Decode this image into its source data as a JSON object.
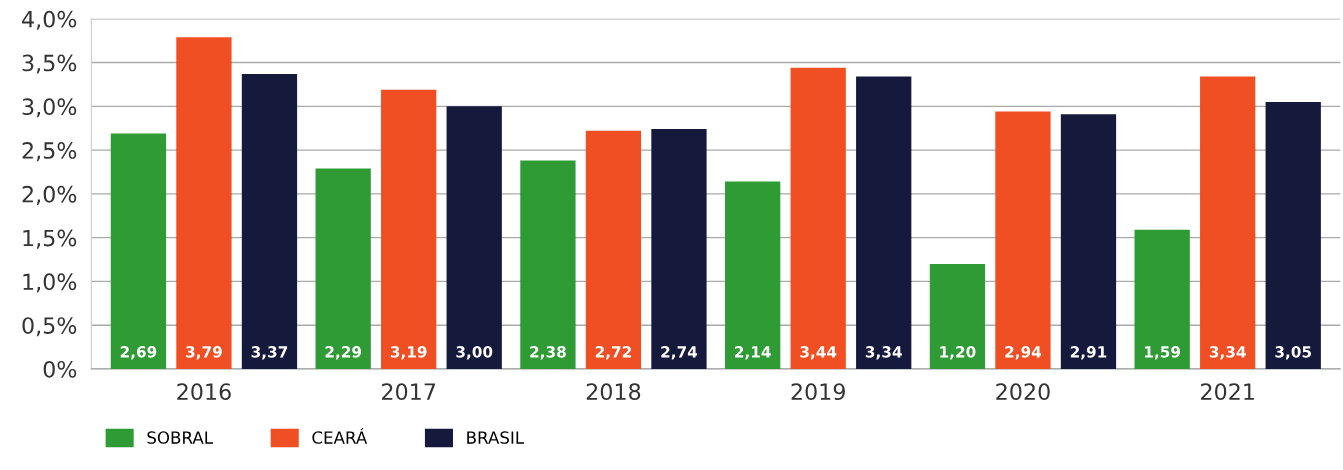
{
  "chart_data": {
    "type": "bar",
    "categories": [
      "2016",
      "2017",
      "2018",
      "2019",
      "2020",
      "2021"
    ],
    "series": [
      {
        "name": "SOBRAL",
        "color": "#2e9b34",
        "values": [
          2.69,
          2.29,
          2.38,
          2.14,
          1.2,
          1.59
        ],
        "value_labels": [
          "2,69",
          "2,29",
          "2,38",
          "2,14",
          "1,20",
          "1,59"
        ]
      },
      {
        "name": "CEARÁ",
        "color": "#f04e23",
        "values": [
          3.79,
          3.19,
          2.72,
          3.44,
          2.94,
          3.34
        ],
        "value_labels": [
          "3,79",
          "3,19",
          "2,72",
          "3,44",
          "2,94",
          "3,34"
        ]
      },
      {
        "name": "BRASIL",
        "color": "#151a3d",
        "values": [
          3.37,
          3.0,
          2.74,
          3.34,
          2.91,
          3.05
        ],
        "value_labels": [
          "3,37",
          "3,00",
          "2,74",
          "3,34",
          "2,91",
          "3,05"
        ]
      }
    ],
    "ylim": [
      0,
      4.0
    ],
    "yticks": [
      {
        "value": 0,
        "label": "0%"
      },
      {
        "value": 0.5,
        "label": "0,5%"
      },
      {
        "value": 1.0,
        "label": "1,0%"
      },
      {
        "value": 1.5,
        "label": "1,5%"
      },
      {
        "value": 2.0,
        "label": "2,0%"
      },
      {
        "value": 2.5,
        "label": "2,5%"
      },
      {
        "value": 3.0,
        "label": "3,0%"
      },
      {
        "value": 3.5,
        "label": "3,5%"
      },
      {
        "value": 4.0,
        "label": "4,0%"
      }
    ],
    "grid": "y",
    "legend": "bottom left"
  }
}
